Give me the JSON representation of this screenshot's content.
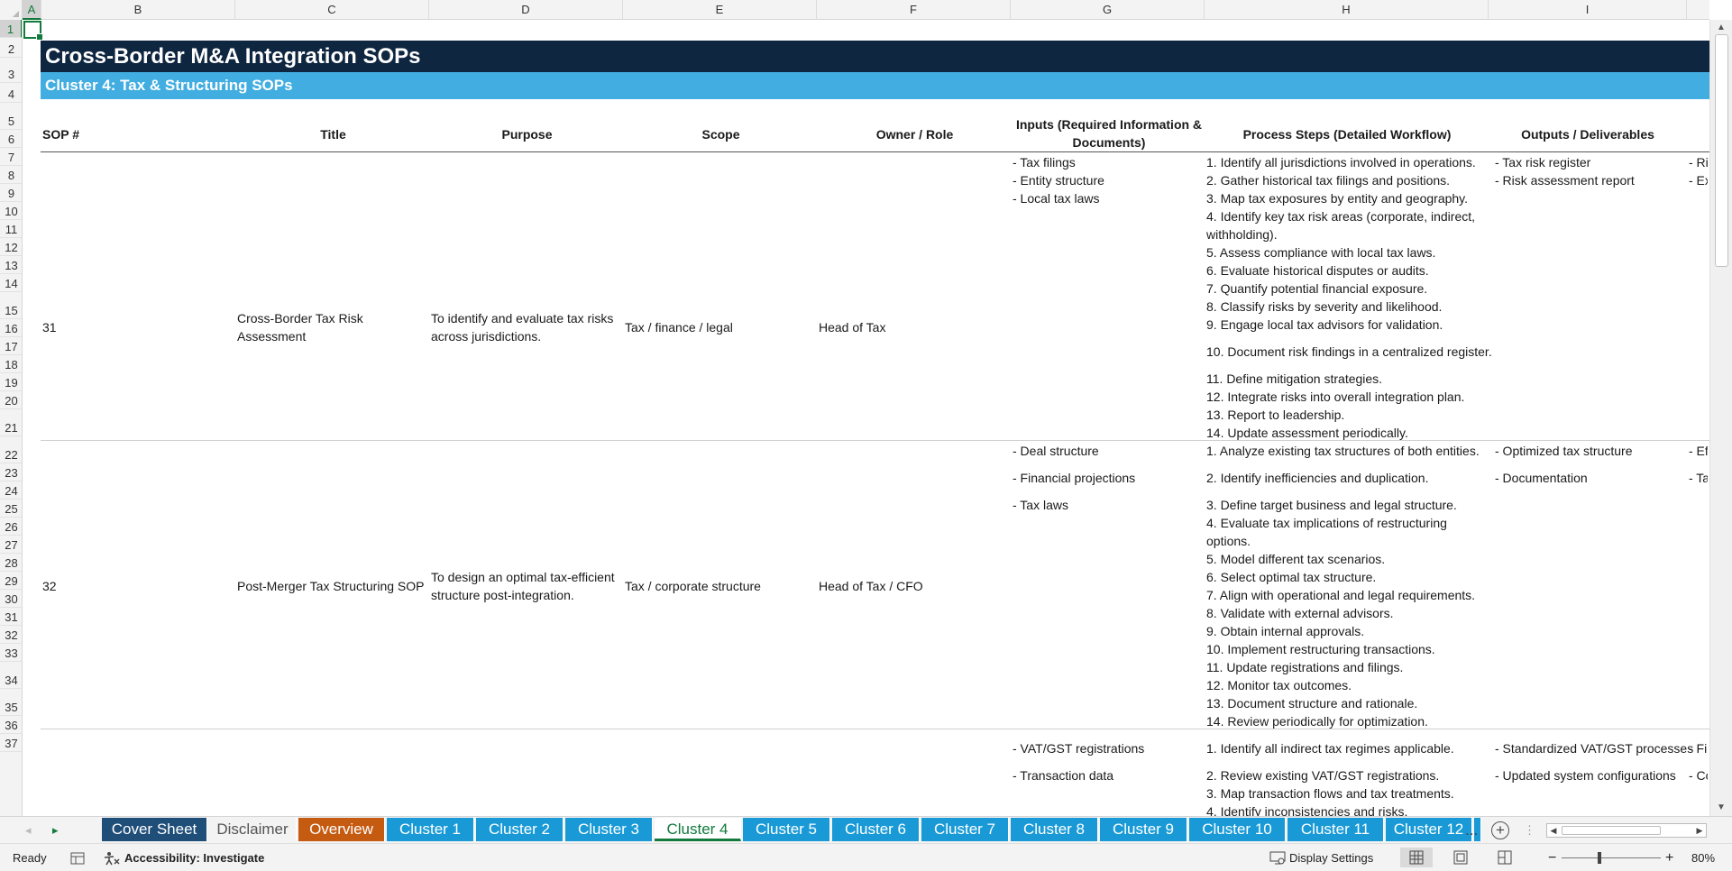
{
  "columns": [
    "A",
    "B",
    "C",
    "D",
    "E",
    "F",
    "G",
    "H",
    "I"
  ],
  "selected_cell_column": "A",
  "rows": [
    "1",
    "2",
    "3",
    "4",
    "5",
    "6",
    "7",
    "8",
    "9",
    "10",
    "11",
    "12",
    "13",
    "14",
    "15",
    "16",
    "17",
    "18",
    "19",
    "20",
    "21",
    "22",
    "23",
    "24",
    "25",
    "26",
    "27",
    "28",
    "29",
    "30",
    "31",
    "32",
    "33",
    "34",
    "35",
    "36",
    "37"
  ],
  "selected_cell_row": "1",
  "title": "Cross-Border M&A Integration SOPs",
  "subtitle": "Cluster 4: Tax & Structuring SOPs",
  "headers": {
    "sop": "SOP #",
    "title": "Title",
    "purpose": "Purpose",
    "scope": "Scope",
    "owner": "Owner / Role",
    "inputs": "Inputs (Required Information & Documents)",
    "process": "Process Steps (Detailed Workflow)",
    "outputs": "Outputs / Deliverables"
  },
  "sops": [
    {
      "num": "31",
      "title": "Cross-Border Tax Risk Assessment",
      "purpose": "To identify and evaluate tax risks across jurisdictions.",
      "scope": "Tax / finance / legal",
      "owner": "Head of Tax",
      "inputs": [
        "- Tax filings",
        "- Entity structure",
        "- Local tax laws"
      ],
      "steps": [
        "1. Identify all jurisdictions involved in operations.",
        "2. Gather historical tax filings and positions.",
        "3. Map tax exposures by entity and geography.",
        "4. Identify key tax risk areas (corporate, indirect, withholding).",
        "5. Assess compliance with local tax laws.",
        "6. Evaluate historical disputes or audits.",
        "7. Quantify potential financial exposure.",
        "8. Classify risks by severity and likelihood.",
        "9. Engage local tax advisors for validation.",
        "10. Document risk findings in a centralized register.",
        "11. Define mitigation strategies.",
        "12. Integrate risks into overall integration plan.",
        "13. Report to leadership.",
        "14. Update assessment periodically."
      ],
      "outputs": [
        "- Tax risk register",
        "- Risk assessment report"
      ],
      "next": [
        "- Ri",
        "- Ex"
      ]
    },
    {
      "num": "32",
      "title": "Post-Merger Tax Structuring SOP",
      "purpose": "To design an optimal tax-efficient structure post-integration.",
      "scope": "Tax / corporate structure",
      "owner": "Head of Tax / CFO",
      "inputs": [
        "- Deal structure",
        "- Financial projections",
        "- Tax laws"
      ],
      "steps": [
        "1. Analyze existing tax structures of both entities.",
        "2. Identify inefficiencies and duplication.",
        "3. Define target business and legal structure.",
        "4. Evaluate tax implications of restructuring options.",
        "5. Model different tax scenarios.",
        "6. Select optimal tax structure.",
        "7. Align with operational and legal requirements.",
        "8. Validate with external advisors.",
        "9. Obtain internal approvals.",
        "10. Implement restructuring transactions.",
        "11. Update registrations and filings.",
        "12. Monitor tax outcomes.",
        "13. Document structure and rationale.",
        "14. Review periodically for optimization."
      ],
      "outputs": [
        "- Optimized tax structure",
        "- Documentation"
      ],
      "next": [
        "- Ef",
        "- Ta"
      ]
    },
    {
      "inputs": [
        "- VAT/GST registrations",
        "- Transaction data"
      ],
      "steps": [
        "1. Identify all indirect tax regimes applicable.",
        "2. Review existing VAT/GST registrations.",
        "3. Map transaction flows and tax treatments.",
        "4. Identify inconsistencies and risks."
      ],
      "outputs": [
        "- Standardized VAT/GST processes",
        "- Updated system configurations"
      ],
      "next": [
        "- Fi",
        "- Co"
      ]
    }
  ],
  "sheet_nav": {
    "prev": "◂",
    "next": "▸"
  },
  "tabs": [
    {
      "label": "Cover Sheet",
      "color": "#1f4e79"
    },
    {
      "label": "Disclaimer",
      "color": "#f3f3f3"
    },
    {
      "label": "Overview",
      "color": "#c55a11"
    },
    {
      "label": "Cluster 1",
      "color": "#199ad6"
    },
    {
      "label": "Cluster 2",
      "color": "#199ad6"
    },
    {
      "label": "Cluster 3",
      "color": "#199ad6"
    },
    {
      "label": "Cluster 4",
      "color": "#ffffff"
    },
    {
      "label": "Cluster 5",
      "color": "#199ad6"
    },
    {
      "label": "Cluster 6",
      "color": "#199ad6"
    },
    {
      "label": "Cluster 7",
      "color": "#199ad6"
    },
    {
      "label": "Cluster 8",
      "color": "#199ad6"
    },
    {
      "label": "Cluster 9",
      "color": "#199ad6"
    },
    {
      "label": "Cluster 10",
      "color": "#199ad6"
    },
    {
      "label": "Cluster 11",
      "color": "#199ad6"
    },
    {
      "label": "Cluster 12",
      "color": "#199ad6"
    }
  ],
  "active_tab": "Cluster 4",
  "tab_more": "...",
  "add_sheet": "+",
  "status": {
    "ready": "Ready",
    "accessibility": "Accessibility: Investigate",
    "display_settings": "Display Settings",
    "zoom_minus": "−",
    "zoom_plus": "+",
    "zoom": "80%",
    "zoom_level_percent": 80
  }
}
